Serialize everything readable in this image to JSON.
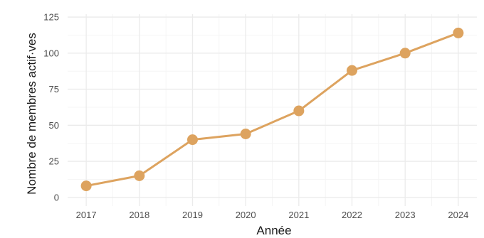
{
  "chart_data": {
    "type": "line",
    "x": [
      2017,
      2018,
      2019,
      2020,
      2021,
      2022,
      2023,
      2024
    ],
    "series": [
      {
        "values": [
          8,
          15,
          40,
          44,
          60,
          88,
          100,
          114
        ]
      }
    ],
    "xlabel": "Année",
    "ylabel": "Nombre de membres actif·ves",
    "ylim": [
      0,
      125
    ],
    "yticks": [
      0,
      25,
      50,
      75,
      100,
      125
    ],
    "grid": true,
    "colors": {
      "line": "#DDA35F",
      "point": "#DDA35F",
      "grid_major": "#EBEBEB",
      "grid_minor": "#F5F5F5"
    }
  }
}
